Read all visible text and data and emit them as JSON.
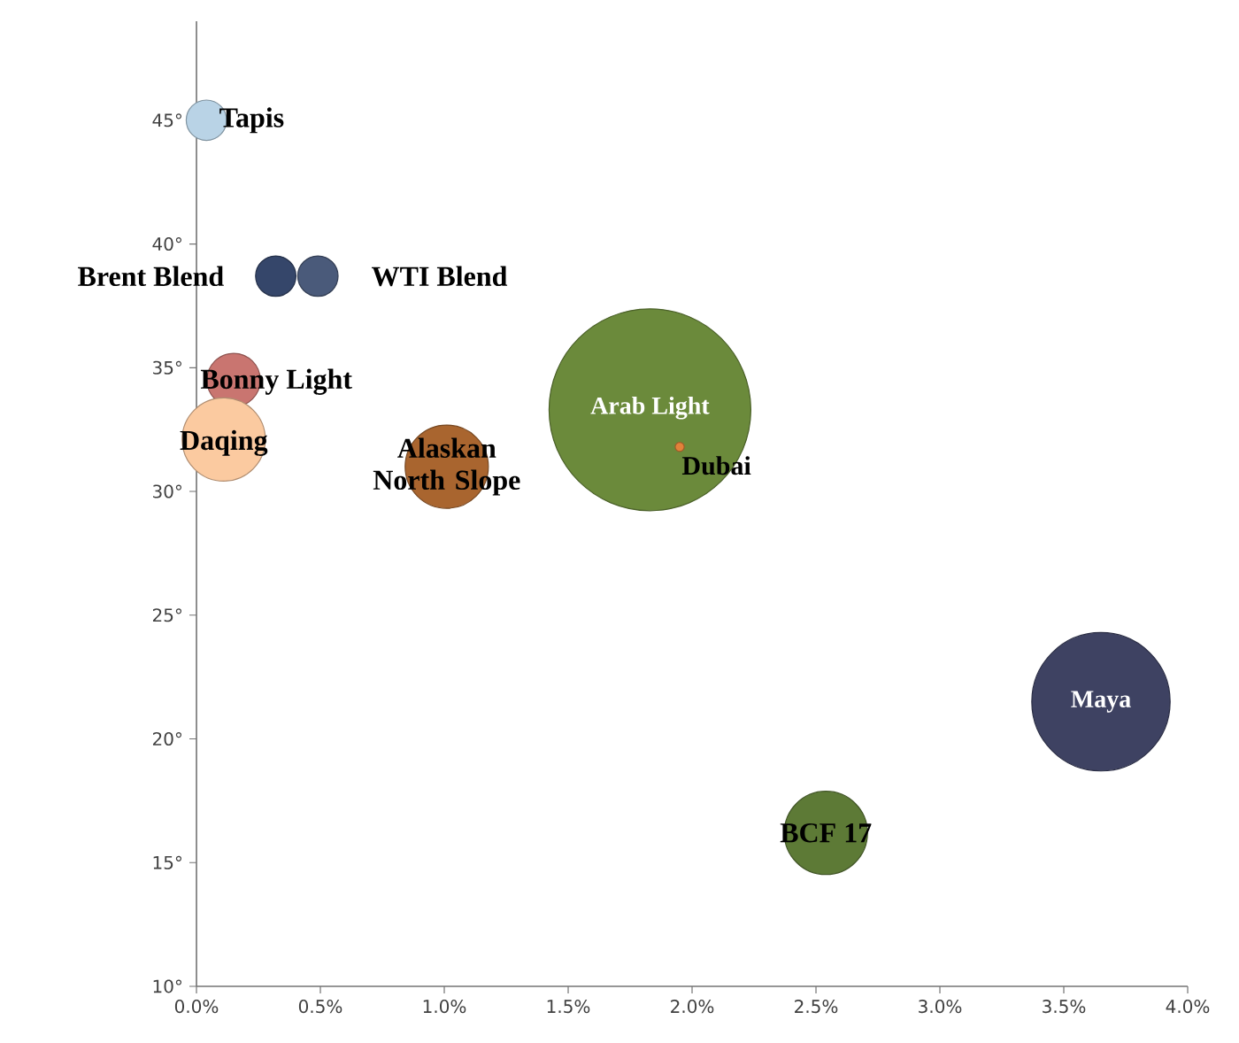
{
  "chart_data": {
    "type": "bubble",
    "xlim": [
      0,
      4
    ],
    "ylim": [
      10,
      49
    ],
    "xticks": [
      {
        "value": 0,
        "label": "0.0%"
      },
      {
        "value": 0.5,
        "label": "0.5%"
      },
      {
        "value": 1,
        "label": "1.0%"
      },
      {
        "value": 1.5,
        "label": "1.5%"
      },
      {
        "value": 2,
        "label": "2.0%"
      },
      {
        "value": 2.5,
        "label": "2.5%"
      },
      {
        "value": 3,
        "label": "3.0%"
      },
      {
        "value": 3.5,
        "label": "3.5%"
      },
      {
        "value": 4,
        "label": "4.0%"
      }
    ],
    "yticks": [
      {
        "value": 10,
        "label": "10°"
      },
      {
        "value": 15,
        "label": "15°"
      },
      {
        "value": 20,
        "label": "20°"
      },
      {
        "value": 25,
        "label": "25°"
      },
      {
        "value": 30,
        "label": "30°"
      },
      {
        "value": 35,
        "label": "35°"
      },
      {
        "value": 40,
        "label": "40°"
      },
      {
        "value": 45,
        "label": "45°"
      }
    ],
    "x": [
      0.04,
      0.32,
      0.49,
      0.15,
      0.11,
      1.01,
      1.83,
      1.95,
      3.65,
      2.54
    ],
    "values": [
      45.0,
      38.7,
      38.7,
      34.5,
      32.1,
      31.0,
      33.3,
      31.8,
      21.5,
      16.2
    ],
    "sizes": [
      0.04,
      0.04,
      0.04,
      0.07,
      0.17,
      0.17,
      1,
      0.002,
      0.47,
      0.17
    ],
    "colors": [
      "#b9d3e6",
      "#35466a",
      "#4a5a7a",
      "#c97570",
      "#fbcaa0",
      "#a9652f",
      "#6b8a3b",
      "#e2823a",
      "#3e4262",
      "#5d7a36"
    ],
    "annotations": [
      {
        "text": "Tapis",
        "x": 0.04,
        "y": 45.0
      },
      {
        "text": "Brent Blend",
        "x": 0.32,
        "y": 38.7
      },
      {
        "text": "WTI Blend",
        "x": 0.49,
        "y": 38.7
      },
      {
        "text": "Bonny Light",
        "x": 0.15,
        "y": 34.5
      },
      {
        "text": "Daqing",
        "x": 0.11,
        "y": 32.1
      },
      {
        "text": "Alaskan North Slope",
        "x": 1.01,
        "y": 31.0
      },
      {
        "text": "Arab Light",
        "x": 1.83,
        "y": 33.3
      },
      {
        "text": "Dubai",
        "x": 1.95,
        "y": 31.8
      },
      {
        "text": "Maya",
        "x": 3.65,
        "y": 21.5
      },
      {
        "text": "BCF 17",
        "x": 2.54,
        "y": 16.2
      }
    ]
  }
}
